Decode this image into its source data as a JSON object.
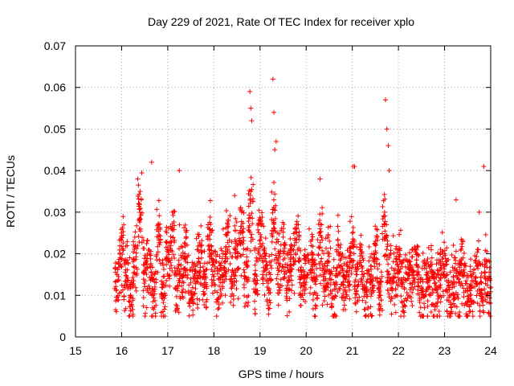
{
  "chart_data": {
    "type": "scatter",
    "title": "Day 229 of 2021, Rate Of TEC Index for receiver xplo",
    "xlabel": "GPS time / hours",
    "ylabel": "ROTI / TECUs",
    "xlim": [
      15,
      24
    ],
    "ylim": [
      0,
      0.07
    ],
    "x_ticks": [
      15,
      16,
      17,
      18,
      19,
      20,
      21,
      22,
      23,
      24
    ],
    "x_tick_labels": [
      "15",
      "16",
      "17",
      "18",
      "19",
      "20",
      "21",
      "22",
      "23",
      "24"
    ],
    "y_ticks": [
      0,
      0.01,
      0.02,
      0.03,
      0.04,
      0.05,
      0.06,
      0.07
    ],
    "y_tick_labels": [
      "0",
      "0.01",
      "0.02",
      "0.03",
      "0.04",
      "0.05",
      "0.06",
      "0.07"
    ],
    "grid": true,
    "marker": "plus",
    "series": [
      {
        "name": "ROTI",
        "color": "#ff0000",
        "x": [
          15.9,
          16.0,
          16.1,
          16.2,
          16.3,
          16.4,
          16.5,
          16.6,
          16.7,
          16.8,
          16.9,
          17.0,
          17.1,
          17.2,
          17.3,
          17.4,
          17.5,
          17.6,
          17.7,
          17.8,
          17.9,
          18.0,
          18.1,
          18.2,
          18.3,
          18.4,
          18.5,
          18.6,
          18.7,
          18.8,
          18.9,
          19.0,
          19.1,
          19.2,
          19.3,
          19.4,
          19.5,
          19.6,
          19.7,
          19.8,
          19.9,
          20.0,
          20.1,
          20.2,
          20.3,
          20.4,
          20.5,
          20.6,
          20.7,
          20.8,
          20.9,
          21.0,
          21.1,
          21.2,
          21.3,
          21.4,
          21.5,
          21.6,
          21.7,
          21.8,
          21.9,
          22.0,
          22.1,
          22.2,
          22.3,
          22.4,
          22.5,
          22.6,
          22.7,
          22.8,
          22.9,
          23.0,
          23.1,
          23.2,
          23.3,
          23.4,
          23.5,
          23.6,
          23.7,
          23.8,
          23.9,
          24.0,
          16.05,
          16.35,
          16.65,
          16.95,
          17.25,
          17.55,
          17.85,
          18.15,
          18.45,
          18.78,
          18.8,
          18.82,
          19.28,
          19.3,
          19.32,
          19.35,
          20.3,
          21.02,
          21.05,
          21.72,
          21.75,
          21.78,
          21.8,
          23.25,
          23.75,
          23.85
        ],
        "y": [
          0.015,
          0.025,
          0.018,
          0.012,
          0.022,
          0.035,
          0.016,
          0.02,
          0.014,
          0.027,
          0.013,
          0.021,
          0.03,
          0.016,
          0.019,
          0.024,
          0.013,
          0.017,
          0.022,
          0.015,
          0.026,
          0.018,
          0.014,
          0.02,
          0.025,
          0.016,
          0.022,
          0.03,
          0.018,
          0.035,
          0.016,
          0.028,
          0.02,
          0.014,
          0.033,
          0.019,
          0.024,
          0.016,
          0.021,
          0.027,
          0.015,
          0.019,
          0.023,
          0.014,
          0.026,
          0.017,
          0.02,
          0.013,
          0.022,
          0.016,
          0.018,
          0.025,
          0.015,
          0.02,
          0.012,
          0.017,
          0.022,
          0.014,
          0.03,
          0.019,
          0.016,
          0.021,
          0.013,
          0.018,
          0.016,
          0.02,
          0.012,
          0.015,
          0.018,
          0.013,
          0.016,
          0.02,
          0.012,
          0.016,
          0.014,
          0.019,
          0.011,
          0.015,
          0.017,
          0.013,
          0.018,
          0.012,
          0.009,
          0.038,
          0.042,
          0.01,
          0.04,
          0.008,
          0.009,
          0.01,
          0.034,
          0.059,
          0.055,
          0.052,
          0.062,
          0.054,
          0.045,
          0.047,
          0.038,
          0.041,
          0.041,
          0.057,
          0.05,
          0.046,
          0.04,
          0.033,
          0.03,
          0.041
        ]
      }
    ],
    "seeded_noise_note": "Dense cloud of points reproduced procedurally around the listed values"
  }
}
